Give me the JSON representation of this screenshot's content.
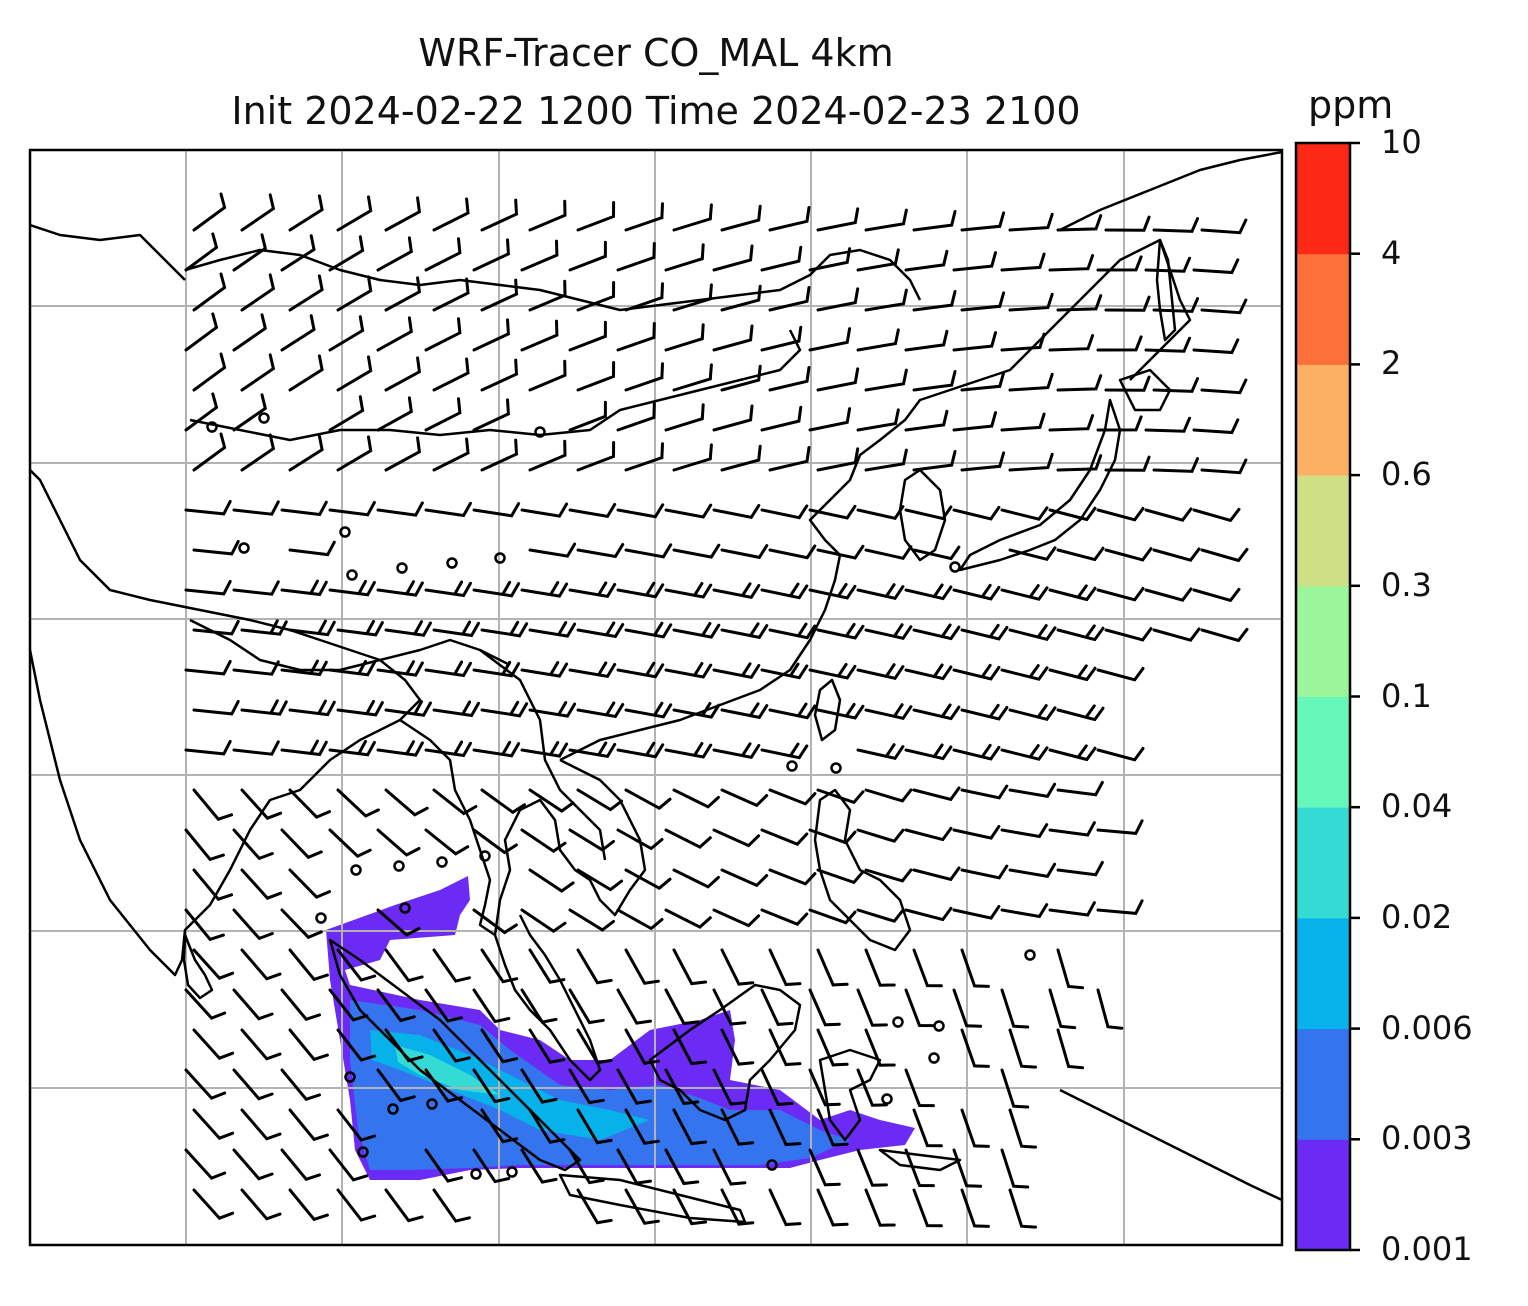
{
  "title": {
    "line1": "WRF-Tracer CO_MAL 4km",
    "line2": "Init 2024-02-22 1200 Time 2024-02-23 2100"
  },
  "colorbar": {
    "unit": "ppm",
    "levels": [
      "0.001",
      "0.003",
      "0.006",
      "0.02",
      "0.04",
      "0.1",
      "0.3",
      "0.6",
      "2",
      "4",
      "10"
    ],
    "colors": [
      "#6b2bf5",
      "#3574ef",
      "#07b1ea",
      "#33dbd4",
      "#66f7bb",
      "#9bf59a",
      "#cfdf86",
      "#fcb064",
      "#fe7039",
      "#fd2916"
    ]
  },
  "map": {
    "gridlines": true,
    "plume_colors": {
      "outer": "#6b2bf5",
      "mid": "#3574ef",
      "inner": "#07b1ea",
      "core": "#33dbd4"
    }
  }
}
